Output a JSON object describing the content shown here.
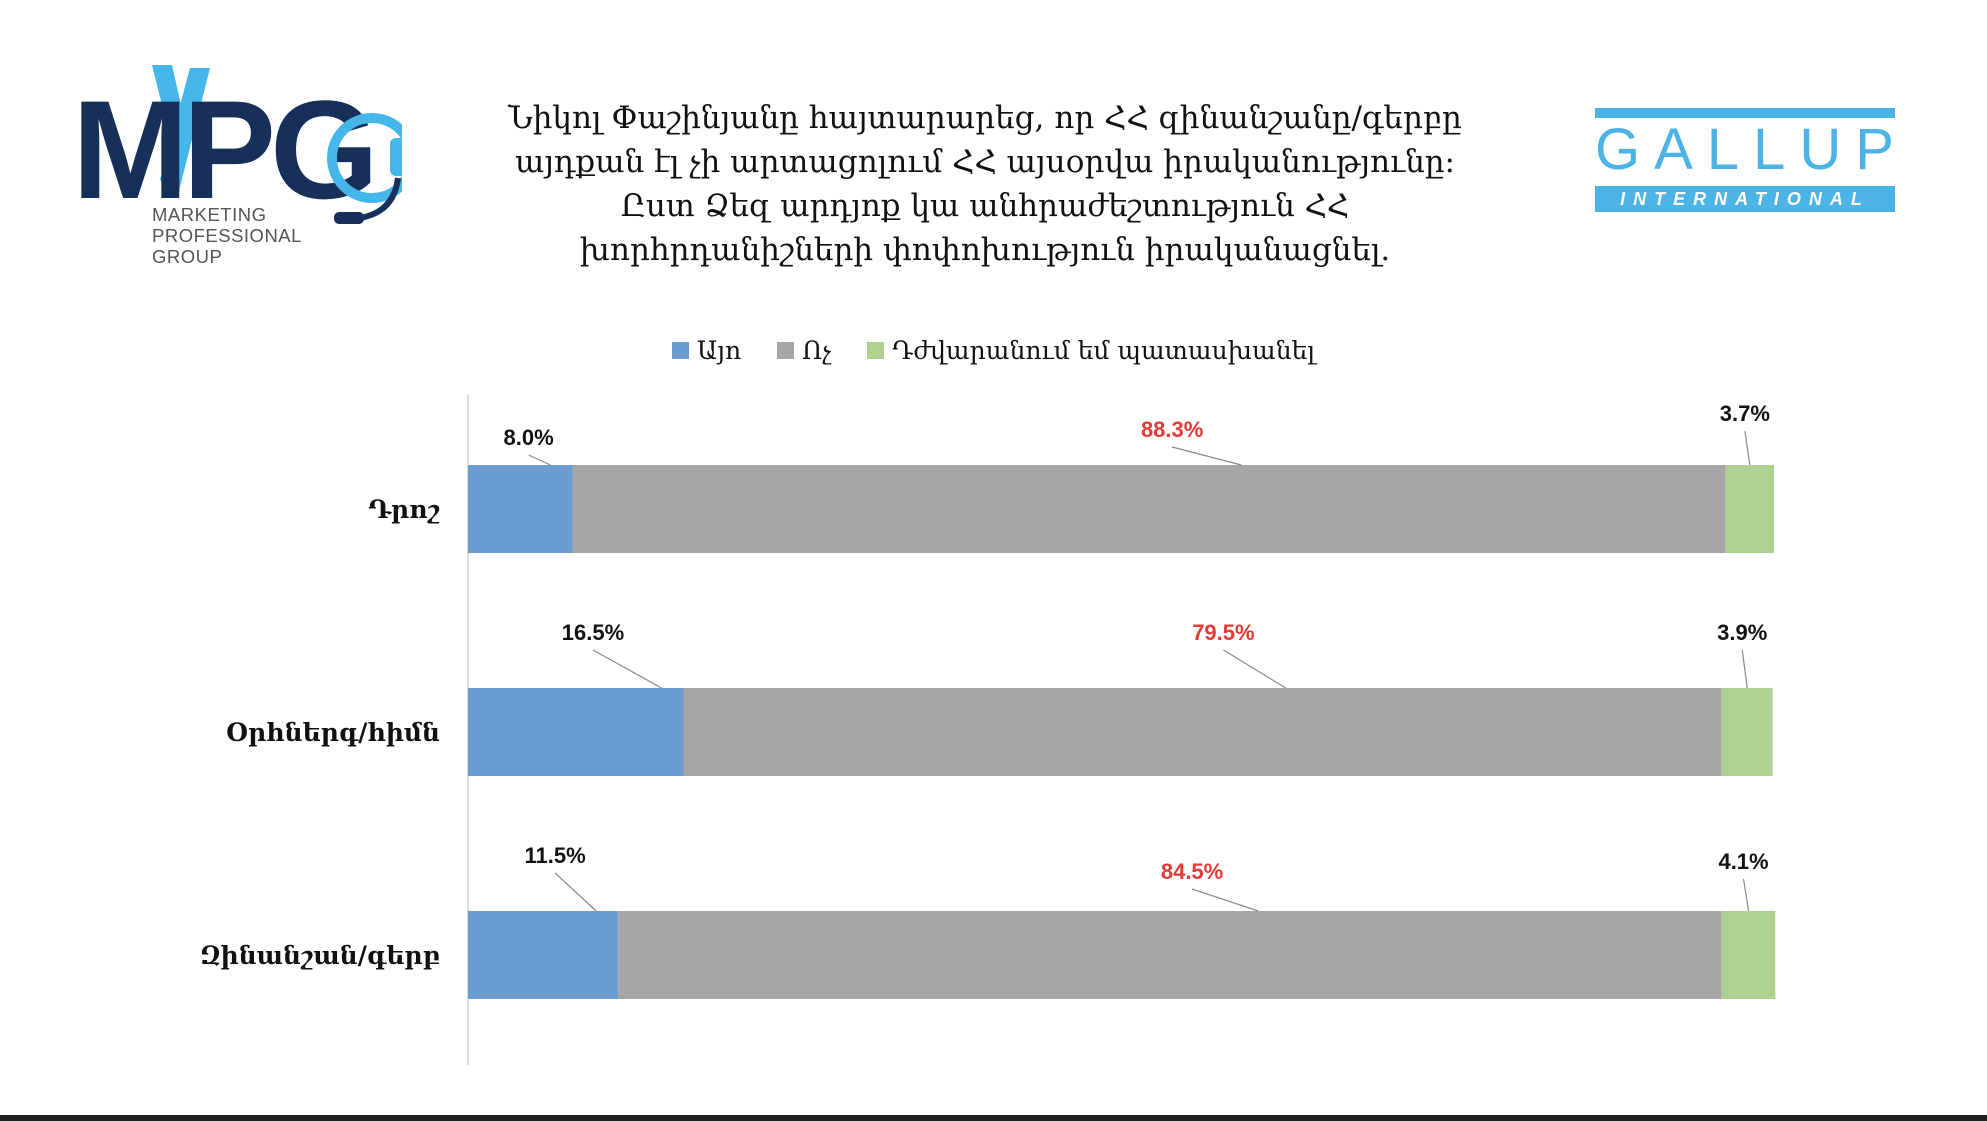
{
  "title_lines": [
    "Նիկոլ Փաշինյանը հայտարարեց, որ ՀՀ զինանշանը/գերբը",
    "այդքան էլ չի արտացոլում ՀՀ այսօրվա իրականությունը:",
    "Ըստ Ձեզ արդյոք կա անհրաժեշտություն ՀՀ",
    "խորհրդանիշների փոփոխություն իրականացնել."
  ],
  "logos": {
    "mpg": {
      "letters": "MPG",
      "subtitle": [
        "MARKETING",
        "PROFESSIONAL",
        "GROUP"
      ],
      "color_light": "#45b6ea",
      "color_dark": "#16305a"
    },
    "gallup": {
      "word": "GALLUP",
      "band": "INTERNATIONAL",
      "color": "#4cb3e6"
    }
  },
  "colors": {
    "yes": "#6a9bd1",
    "no": "#a6a6a6",
    "dk": "#aed190",
    "highlight_label": "#e53935",
    "label": "#111111"
  },
  "chart_data": {
    "type": "bar",
    "orientation": "horizontal",
    "stacked": true,
    "normalized_percent": true,
    "legend_position": "top",
    "categories": [
      "Դրոշ",
      "Օրհներգ/հիմն",
      "Զինանշան/գերբ"
    ],
    "series": [
      {
        "name": "Այո",
        "values": [
          8.0,
          16.5,
          11.5
        ],
        "color": "#6a9bd1"
      },
      {
        "name": "Ոչ",
        "values": [
          88.3,
          79.5,
          84.5
        ],
        "color": "#a6a6a6"
      },
      {
        "name": "Դժվարանում եմ պատասխանել",
        "values": [
          3.7,
          3.9,
          4.1
        ],
        "color": "#aed190"
      }
    ],
    "data_labels": [
      [
        "8.0%",
        "88.3%",
        "3.7%"
      ],
      [
        "16.5%",
        "79.5%",
        "3.9%"
      ],
      [
        "11.5%",
        "84.5%",
        "4.1%"
      ]
    ],
    "xlim": [
      0,
      100
    ],
    "grid": false
  }
}
